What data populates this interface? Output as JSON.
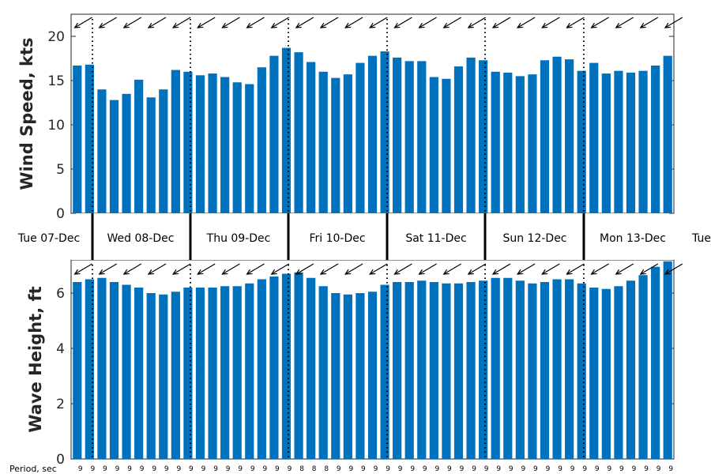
{
  "chart_data": [
    {
      "type": "bar",
      "panel": "wind",
      "ylabel": "Wind Speed, kts",
      "ylim": [
        0,
        22.5
      ],
      "yticks": [
        0,
        5,
        10,
        15,
        20
      ],
      "color": "#0072bd",
      "values": [
        16.7,
        16.8,
        14.0,
        12.8,
        13.5,
        15.1,
        13.1,
        14.0,
        16.2,
        16.0,
        15.6,
        15.8,
        15.4,
        14.8,
        14.6,
        16.5,
        17.8,
        18.7,
        18.2,
        17.1,
        16.0,
        15.3,
        15.7,
        17.0,
        17.8,
        18.3,
        17.6,
        17.2,
        17.2,
        15.4,
        15.2,
        16.6,
        17.6,
        17.3,
        16.0,
        15.9,
        15.5,
        15.7,
        17.3,
        17.7,
        17.4,
        16.1,
        17.0,
        15.8,
        16.1,
        15.9,
        16.1,
        16.7,
        17.8
      ],
      "wind_direction_arrows": "from the northeast"
    },
    {
      "type": "bar",
      "panel": "wave",
      "ylabel": "Wave Height, ft",
      "ylim": [
        0,
        7.2
      ],
      "yticks": [
        0,
        2,
        4,
        6
      ],
      "color": "#0072bd",
      "values": [
        6.4,
        6.5,
        6.55,
        6.4,
        6.3,
        6.2,
        6.0,
        5.95,
        6.05,
        6.2,
        6.2,
        6.2,
        6.25,
        6.25,
        6.35,
        6.5,
        6.6,
        6.7,
        6.75,
        6.55,
        6.25,
        6.0,
        5.95,
        6.0,
        6.05,
        6.3,
        6.4,
        6.4,
        6.45,
        6.4,
        6.35,
        6.35,
        6.4,
        6.45,
        6.55,
        6.55,
        6.45,
        6.35,
        6.4,
        6.5,
        6.5,
        6.35,
        6.2,
        6.15,
        6.25,
        6.45,
        6.65,
        6.95,
        7.15
      ],
      "period_title": "Period, sec",
      "periods": [
        "9",
        "9",
        "9",
        "9",
        "9",
        "9",
        "9",
        "9",
        "9",
        "9",
        "9",
        "9",
        "9",
        "9",
        "9",
        "9",
        "9",
        "9",
        "8",
        "8",
        "8",
        "9",
        "9",
        "9",
        "9",
        "9",
        "9",
        "9",
        "9",
        "9",
        "9",
        "9",
        "9",
        "9",
        "9",
        "9",
        "9",
        "9",
        "9",
        "9",
        "9",
        "9",
        "9",
        "9",
        "9",
        "9",
        "9",
        "9",
        "9"
      ]
    }
  ],
  "days": [
    "Tue 07-Dec",
    "Wed 08-Dec",
    "Thu 09-Dec",
    "Fri 10-Dec",
    "Sat 11-Dec",
    "Sun 12-Dec",
    "Mon 13-Dec",
    "Tue"
  ],
  "bar_color": "#0072bd"
}
